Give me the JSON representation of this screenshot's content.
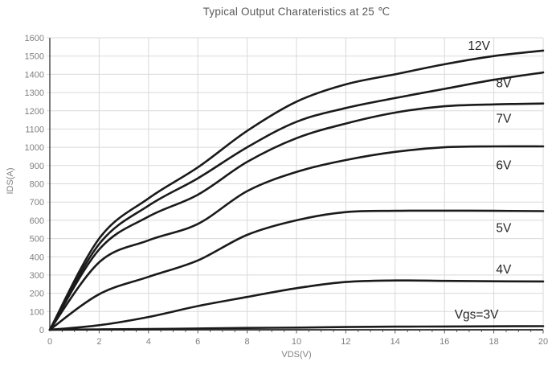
{
  "chart_data": {
    "type": "line",
    "title": "Typical Output Charateristics at 25 ℃",
    "xlabel": "VDS(V)",
    "ylabel": "IDS(A)",
    "xlim": [
      0,
      20
    ],
    "ylim": [
      0,
      1600
    ],
    "xtick_step": 2,
    "ytick_step": 100,
    "minor_xtick_step": 0.5,
    "grid": true,
    "legend_position": "inline-labels-right",
    "x": [
      0,
      2,
      4,
      6,
      8,
      10,
      12,
      14,
      16,
      18,
      20
    ],
    "series": [
      {
        "name": "Vgs=12V",
        "label": "12V",
        "label_x": 17.4,
        "label_y": 1557,
        "values": [
          0,
          500,
          720,
          890,
          1090,
          1250,
          1345,
          1400,
          1455,
          1500,
          1530
        ]
      },
      {
        "name": "Vgs=8V",
        "label": "8V",
        "label_x": 18.4,
        "label_y": 1350,
        "values": [
          0,
          470,
          680,
          830,
          1000,
          1140,
          1215,
          1270,
          1320,
          1370,
          1410
        ]
      },
      {
        "name": "Vgs=7V",
        "label": "7V",
        "label_x": 18.4,
        "label_y": 1158,
        "values": [
          0,
          440,
          620,
          740,
          920,
          1050,
          1130,
          1190,
          1225,
          1235,
          1240
        ]
      },
      {
        "name": "Vgs=6V",
        "label": "6V",
        "label_x": 18.4,
        "label_y": 902,
        "values": [
          0,
          370,
          490,
          580,
          760,
          865,
          930,
          975,
          1000,
          1005,
          1005
        ]
      },
      {
        "name": "Vgs=5V",
        "label": "5V",
        "label_x": 18.4,
        "label_y": 558,
        "values": [
          0,
          195,
          290,
          380,
          520,
          600,
          645,
          652,
          653,
          652,
          650
        ]
      },
      {
        "name": "Vgs=4V",
        "label": "4V",
        "label_x": 18.4,
        "label_y": 330,
        "values": [
          0,
          25,
          70,
          130,
          180,
          228,
          262,
          270,
          268,
          266,
          265
        ]
      },
      {
        "name": "Vgs=3V",
        "label": "Vgs=3V",
        "label_x": 17.3,
        "label_y": 84,
        "values": [
          0,
          2,
          4,
          7,
          10,
          12,
          15,
          17,
          18,
          19,
          20
        ]
      }
    ],
    "colors": {
      "curve": "#1a1a1a",
      "grid": "#d9d9d9",
      "axis": "#404040",
      "tick": "#595959",
      "tick_label": "#808080",
      "series_label": "#262626",
      "background": "#ffffff"
    }
  }
}
